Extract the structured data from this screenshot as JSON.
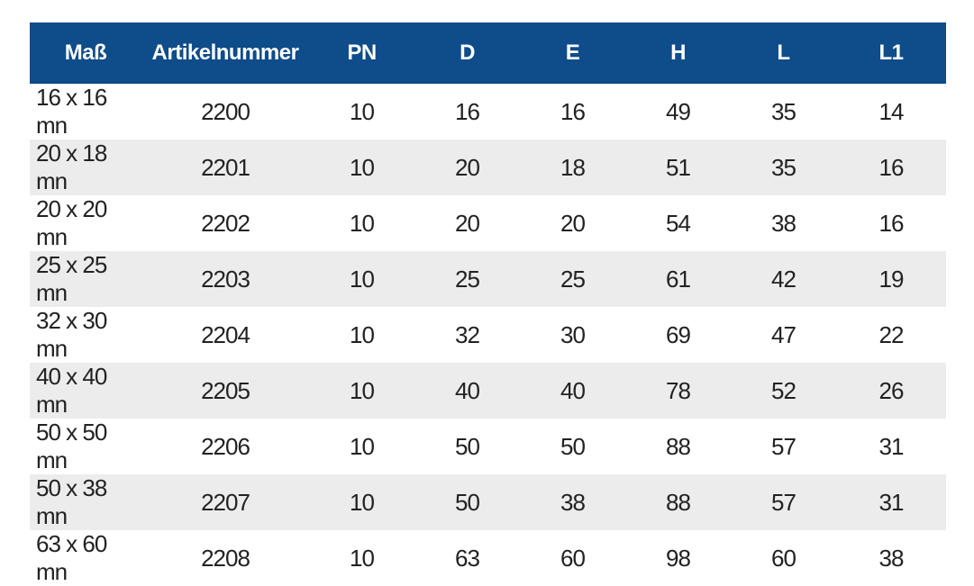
{
  "table": {
    "header": [
      "Maß",
      "Artikelnummer",
      "PN",
      "D",
      "E",
      "H",
      "L",
      "L1"
    ],
    "rows": [
      [
        "16 x 16 mn",
        2200,
        10,
        16,
        16,
        49,
        35,
        14
      ],
      [
        "20 x 18 mn",
        2201,
        10,
        20,
        18,
        51,
        35,
        16
      ],
      [
        "20 x 20 mn",
        2202,
        10,
        20,
        20,
        54,
        38,
        16
      ],
      [
        "25 x 25 mn",
        2203,
        10,
        25,
        25,
        61,
        42,
        19
      ],
      [
        "32 x 30 mn",
        2204,
        10,
        32,
        30,
        69,
        47,
        22
      ],
      [
        "40 x 40 mn",
        2205,
        10,
        40,
        40,
        78,
        52,
        26
      ],
      [
        "50 x 50 mn",
        2206,
        10,
        50,
        50,
        88,
        57,
        31
      ],
      [
        "50 x 38 mn",
        2207,
        10,
        50,
        38,
        88,
        57,
        31
      ],
      [
        "63 x 60 mn",
        2208,
        10,
        63,
        60,
        98,
        60,
        38
      ]
    ]
  }
}
